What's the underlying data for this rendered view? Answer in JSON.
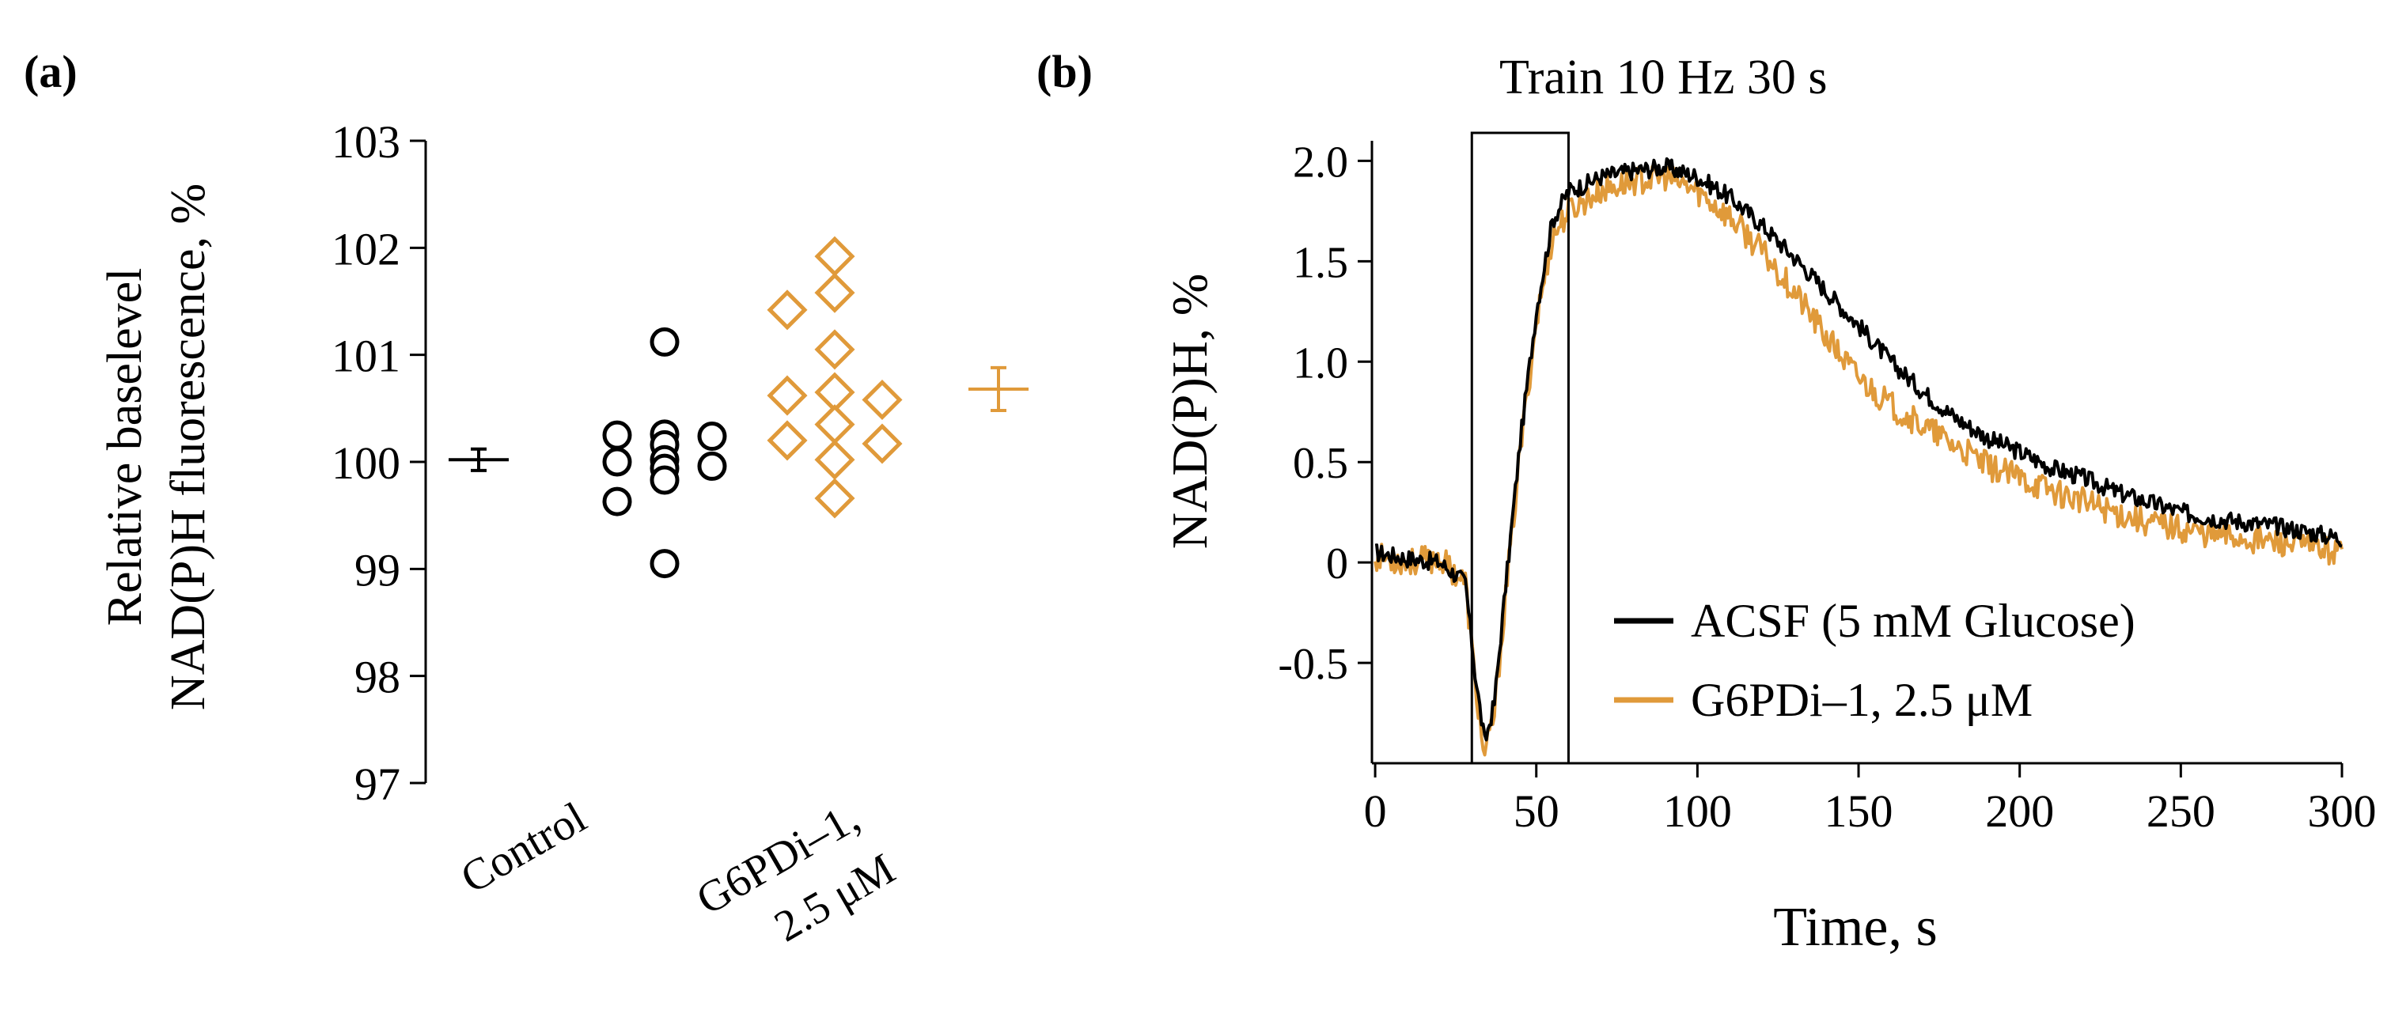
{
  "colors": {
    "control": "#000000",
    "treatment": "#E09A3A",
    "axis": "#000000"
  },
  "chart_data": [
    {
      "panel_label": "(a)",
      "type": "scatter",
      "ylabel_line1": "Relative baselevel",
      "ylabel_line2": "NAD(P)H fluorescence, %",
      "ylim": [
        97,
        103
      ],
      "yticks": [
        97,
        98,
        99,
        100,
        101,
        102,
        103
      ],
      "categories": [
        "Control",
        "G6PDi–1,",
        "2.5 μM"
      ],
      "series": [
        {
          "name": "Control",
          "marker": "circle",
          "color": "#000000",
          "mean": 100.02,
          "sem": 0.1,
          "values": [
            101.12,
            100.26,
            100.25,
            100.24,
            100.16,
            100.02,
            100.0,
            99.96,
            99.94,
            99.83,
            99.63,
            99.05
          ]
        },
        {
          "name": "G6PDi–1, 2.5 μM",
          "marker": "diamond",
          "color": "#E09A3A",
          "mean": 100.68,
          "sem": 0.2,
          "values": [
            101.92,
            101.58,
            101.42,
            101.05,
            100.65,
            100.62,
            100.58,
            100.35,
            100.2,
            100.17,
            100.02,
            99.66
          ]
        }
      ]
    },
    {
      "panel_label": "(b)",
      "type": "line",
      "annotation": "Train 10 Hz 30 s",
      "stim_window": [
        30,
        60
      ],
      "xlabel": "Time, s",
      "ylabel": "NAD(P)H, %",
      "xlim": [
        -1,
        300
      ],
      "ylim": [
        -1.0,
        2.1
      ],
      "xticks": [
        0,
        50,
        100,
        150,
        200,
        250,
        300
      ],
      "yticks": [
        -0.5,
        0,
        0.5,
        1.0,
        1.5,
        2.0
      ],
      "ytick_labels": [
        "-0.5",
        "0",
        "0.5",
        "1.0",
        "1.5",
        "2.0"
      ],
      "series": [
        {
          "name": "ACSF (5 mM Glucose)",
          "color": "#000000",
          "x": [
            0,
            10,
            20,
            28,
            31,
            34,
            37,
            40,
            45,
            50,
            55,
            60,
            65,
            70,
            80,
            90,
            100,
            110,
            120,
            130,
            140,
            150,
            160,
            170,
            180,
            190,
            200,
            210,
            220,
            230,
            240,
            250,
            260,
            270,
            280,
            290,
            300
          ],
          "y": [
            0.05,
            0.02,
            0.0,
            -0.1,
            -0.55,
            -0.9,
            -0.7,
            -0.2,
            0.6,
            1.25,
            1.7,
            1.85,
            1.88,
            1.92,
            1.95,
            1.97,
            1.92,
            1.82,
            1.68,
            1.52,
            1.35,
            1.18,
            1.0,
            0.85,
            0.72,
            0.62,
            0.55,
            0.47,
            0.42,
            0.35,
            0.3,
            0.25,
            0.22,
            0.2,
            0.18,
            0.15,
            0.12
          ]
        },
        {
          "name": "G6PDi–1, 2.5 μM",
          "color": "#E09A3A",
          "x": [
            0,
            10,
            20,
            28,
            31,
            34,
            37,
            40,
            45,
            50,
            55,
            60,
            65,
            70,
            80,
            90,
            100,
            110,
            120,
            130,
            140,
            150,
            160,
            170,
            180,
            190,
            200,
            210,
            220,
            230,
            240,
            250,
            260,
            270,
            280,
            290,
            300
          ],
          "y": [
            0.03,
            0.0,
            0.02,
            -0.1,
            -0.6,
            -0.98,
            -0.75,
            -0.25,
            0.55,
            1.2,
            1.62,
            1.75,
            1.8,
            1.85,
            1.9,
            1.92,
            1.85,
            1.72,
            1.55,
            1.35,
            1.12,
            0.92,
            0.78,
            0.68,
            0.58,
            0.48,
            0.42,
            0.36,
            0.3,
            0.25,
            0.2,
            0.17,
            0.14,
            0.12,
            0.1,
            0.08,
            0.05
          ]
        }
      ]
    }
  ]
}
